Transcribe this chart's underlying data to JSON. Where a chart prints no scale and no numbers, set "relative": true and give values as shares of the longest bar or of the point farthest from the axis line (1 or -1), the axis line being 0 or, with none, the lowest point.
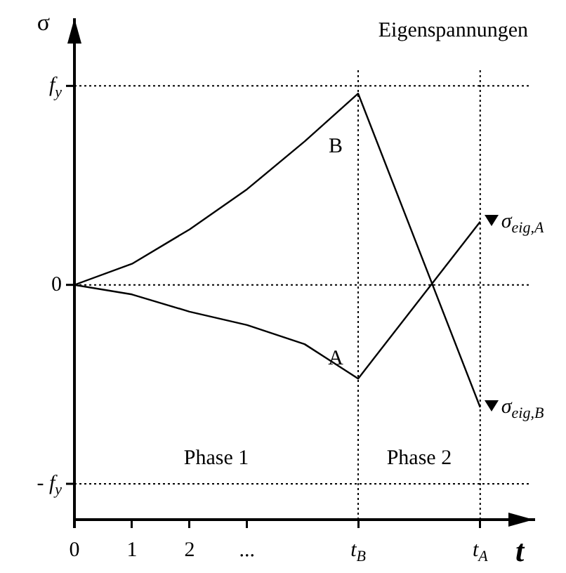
{
  "chart_data": {
    "type": "line",
    "title": "Eigenspannungen",
    "xlabel": "t",
    "ylabel": "σ",
    "relative": true,
    "x": [
      0,
      1,
      2,
      3,
      4,
      4.93,
      7.05
    ],
    "series": [
      {
        "name": "B",
        "color": "#000000",
        "values": [
          0,
          0.11,
          0.29,
          0.5,
          0.75,
          1,
          -0.64
        ]
      },
      {
        "name": "A",
        "color": "#000000",
        "values": [
          0,
          -0.05,
          -0.14,
          -0.21,
          -0.31,
          -0.49,
          0.33
        ]
      }
    ],
    "xlim": [
      0,
      7.98
    ],
    "xticks": [
      0,
      1,
      2,
      {
        "value": 3,
        "label": "..."
      },
      {
        "value": 4.93,
        "label": "t$_{B}$"
      },
      {
        "value": 7.05,
        "label": "t$_{A}$"
      }
    ],
    "ref_lines": [
      {
        "axis": "y",
        "value": 1.04,
        "label": "f$_{y}$"
      },
      {
        "axis": "y",
        "value": 0,
        "label": "0"
      },
      {
        "axis": "y",
        "value": -1.04,
        "label": "- f$_{y}$"
      },
      {
        "axis": "x",
        "value": 4.93
      },
      {
        "axis": "x",
        "value": 7.05
      }
    ],
    "annotations": [
      "Phase 1",
      "Phase 2",
      {
        "text": "σ$_{eig,A}$",
        "x": 7.05,
        "y": 0.33
      },
      {
        "text": "σ$_{eig,B}$",
        "x": 7.05,
        "y": -0.64
      }
    ]
  }
}
